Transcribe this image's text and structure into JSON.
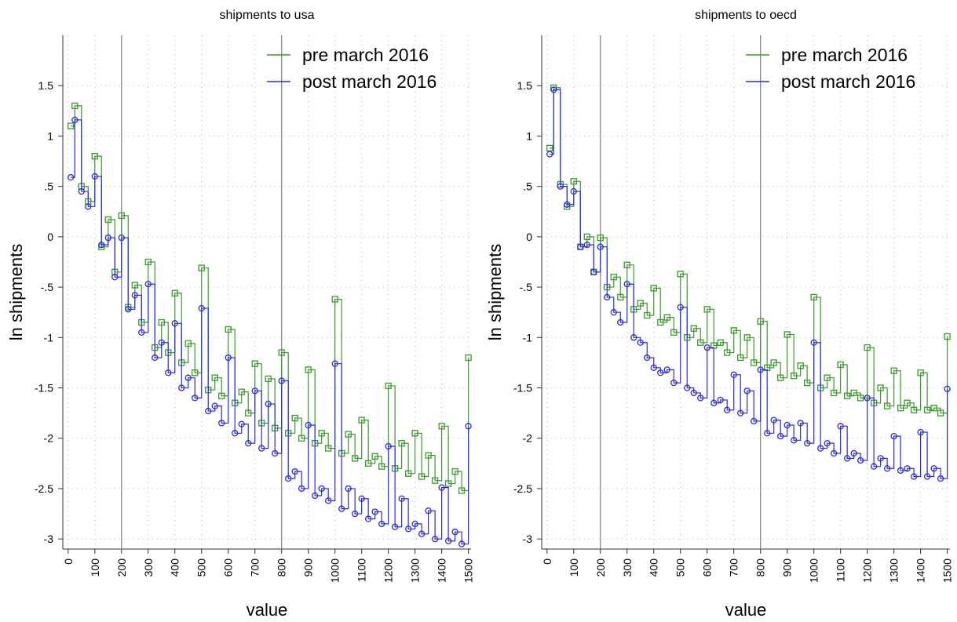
{
  "chart_data": [
    {
      "type": "line",
      "title": "shipments to usa",
      "x_label": "value",
      "y_label": "ln shipments",
      "x": [
        10,
        25,
        50,
        75,
        100,
        125,
        150,
        175,
        200,
        225,
        250,
        275,
        300,
        325,
        350,
        375,
        400,
        425,
        450,
        475,
        500,
        525,
        550,
        575,
        600,
        625,
        650,
        675,
        700,
        725,
        750,
        775,
        800,
        825,
        850,
        875,
        900,
        925,
        950,
        975,
        1000,
        1025,
        1050,
        1075,
        1100,
        1125,
        1150,
        1175,
        1200,
        1225,
        1250,
        1275,
        1300,
        1325,
        1350,
        1375,
        1400,
        1425,
        1450,
        1475,
        1500
      ],
      "series": [
        {
          "name": "pre march 2016",
          "color": "#3a9a2a",
          "marker": "square",
          "values": [
            1.1,
            1.3,
            0.5,
            0.35,
            0.8,
            -0.1,
            0.17,
            -0.35,
            0.21,
            -0.7,
            -0.48,
            -0.85,
            -0.25,
            -1.1,
            -0.85,
            -1.15,
            -0.56,
            -1.25,
            -1.06,
            -1.35,
            -0.31,
            -1.52,
            -1.4,
            -1.58,
            -0.92,
            -1.65,
            -1.54,
            -1.75,
            -1.26,
            -1.85,
            -1.41,
            -1.9,
            -1.15,
            -1.95,
            -1.8,
            -2.0,
            -1.32,
            -2.05,
            -1.95,
            -2.1,
            -0.62,
            -2.15,
            -1.96,
            -2.2,
            -1.82,
            -2.25,
            -2.18,
            -2.28,
            -1.48,
            -2.3,
            -2.05,
            -2.35,
            -1.95,
            -2.38,
            -2.17,
            -2.42,
            -1.88,
            -2.45,
            -2.33,
            -2.52,
            -1.2
          ]
        },
        {
          "name": "post march 2016",
          "color": "#2a2ae8",
          "marker": "circle",
          "values": [
            0.59,
            1.16,
            0.45,
            0.3,
            0.6,
            -0.08,
            -0.01,
            -0.4,
            -0.01,
            -0.72,
            -0.58,
            -0.95,
            -0.47,
            -1.2,
            -1.05,
            -1.35,
            -0.86,
            -1.5,
            -1.4,
            -1.6,
            -0.71,
            -1.73,
            -1.68,
            -1.85,
            -1.2,
            -1.95,
            -1.86,
            -2.05,
            -1.53,
            -2.1,
            -1.66,
            -2.15,
            -1.43,
            -2.4,
            -2.33,
            -2.5,
            -1.87,
            -2.57,
            -2.5,
            -2.62,
            -1.26,
            -2.7,
            -2.5,
            -2.75,
            -2.6,
            -2.8,
            -2.73,
            -2.85,
            -2.08,
            -2.88,
            -2.6,
            -2.9,
            -2.85,
            -2.95,
            -2.72,
            -3.0,
            -2.49,
            -3.02,
            -2.93,
            -3.05,
            -1.88
          ]
        }
      ],
      "xlim": [
        -20,
        1510
      ],
      "ylim": [
        -3.1,
        2.0
      ],
      "xticks": [
        0,
        100,
        200,
        300,
        400,
        500,
        600,
        700,
        800,
        900,
        1000,
        1100,
        1200,
        1300,
        1400,
        1500
      ],
      "yticks": [
        1.5,
        1,
        {
          "value": 0.5,
          "label": ".5"
        },
        0,
        {
          "value": -0.5,
          "label": "-.5"
        },
        -1,
        -1.5,
        -2,
        -2.5,
        -3
      ],
      "vlines": [
        200,
        800
      ],
      "grid": true,
      "legend": "upper right"
    },
    {
      "type": "line",
      "title": "shipments to oecd",
      "x_label": "value",
      "y_label": "ln shipments",
      "x": [
        10,
        25,
        50,
        75,
        100,
        125,
        150,
        175,
        200,
        225,
        250,
        275,
        300,
        325,
        350,
        375,
        400,
        425,
        450,
        475,
        500,
        525,
        550,
        575,
        600,
        625,
        650,
        675,
        700,
        725,
        750,
        775,
        800,
        825,
        850,
        875,
        900,
        925,
        950,
        975,
        1000,
        1025,
        1050,
        1075,
        1100,
        1125,
        1150,
        1175,
        1200,
        1225,
        1250,
        1275,
        1300,
        1325,
        1350,
        1375,
        1400,
        1425,
        1450,
        1475,
        1500
      ],
      "series": [
        {
          "name": "pre march 2016",
          "color": "#3a9a2a",
          "marker": "square",
          "values": [
            0.88,
            1.48,
            0.52,
            0.3,
            0.55,
            -0.1,
            0.0,
            -0.35,
            -0.01,
            -0.5,
            -0.4,
            -0.6,
            -0.28,
            -0.72,
            -0.66,
            -0.78,
            -0.51,
            -0.85,
            -0.8,
            -0.95,
            -0.37,
            -1.0,
            -0.91,
            -1.05,
            -0.72,
            -1.08,
            -1.05,
            -1.15,
            -0.93,
            -1.2,
            -1.0,
            -1.25,
            -0.84,
            -1.3,
            -1.25,
            -1.4,
            -0.97,
            -1.38,
            -1.28,
            -1.45,
            -0.6,
            -1.5,
            -1.4,
            -1.55,
            -1.27,
            -1.58,
            -1.55,
            -1.6,
            -1.1,
            -1.65,
            -1.5,
            -1.68,
            -1.33,
            -1.7,
            -1.65,
            -1.72,
            -1.35,
            -1.72,
            -1.7,
            -1.75,
            -0.99
          ]
        },
        {
          "name": "post march 2016",
          "color": "#2a2ae8",
          "marker": "circle",
          "values": [
            0.82,
            1.46,
            0.5,
            0.32,
            0.45,
            -0.1,
            -0.08,
            -0.35,
            -0.1,
            -0.6,
            -0.75,
            -0.85,
            -0.47,
            -1.0,
            -1.05,
            -1.2,
            -1.3,
            -1.35,
            -1.32,
            -1.45,
            -0.7,
            -1.5,
            -1.55,
            -1.6,
            -1.1,
            -1.65,
            -1.62,
            -1.72,
            -1.37,
            -1.75,
            -1.53,
            -1.83,
            -1.32,
            -1.95,
            -1.82,
            -1.98,
            -1.87,
            -2.02,
            -1.85,
            -2.05,
            -1.05,
            -2.1,
            -2.05,
            -2.15,
            -1.88,
            -2.2,
            -2.15,
            -2.22,
            -1.6,
            -2.28,
            -2.2,
            -2.3,
            -1.98,
            -2.32,
            -2.3,
            -2.38,
            -1.94,
            -2.38,
            -2.3,
            -2.4,
            -1.51
          ]
        }
      ],
      "xlim": [
        -20,
        1510
      ],
      "ylim": [
        -3.1,
        2.0
      ],
      "xticks": [
        0,
        100,
        200,
        300,
        400,
        500,
        600,
        700,
        800,
        900,
        1000,
        1100,
        1200,
        1300,
        1400,
        1500
      ],
      "yticks": [
        1.5,
        1,
        {
          "value": 0.5,
          "label": ".5"
        },
        0,
        {
          "value": -0.5,
          "label": "-.5"
        },
        -1,
        -1.5,
        -2,
        -2.5,
        -3
      ],
      "vlines": [
        200,
        800
      ],
      "grid": true,
      "legend": "upper right"
    }
  ]
}
